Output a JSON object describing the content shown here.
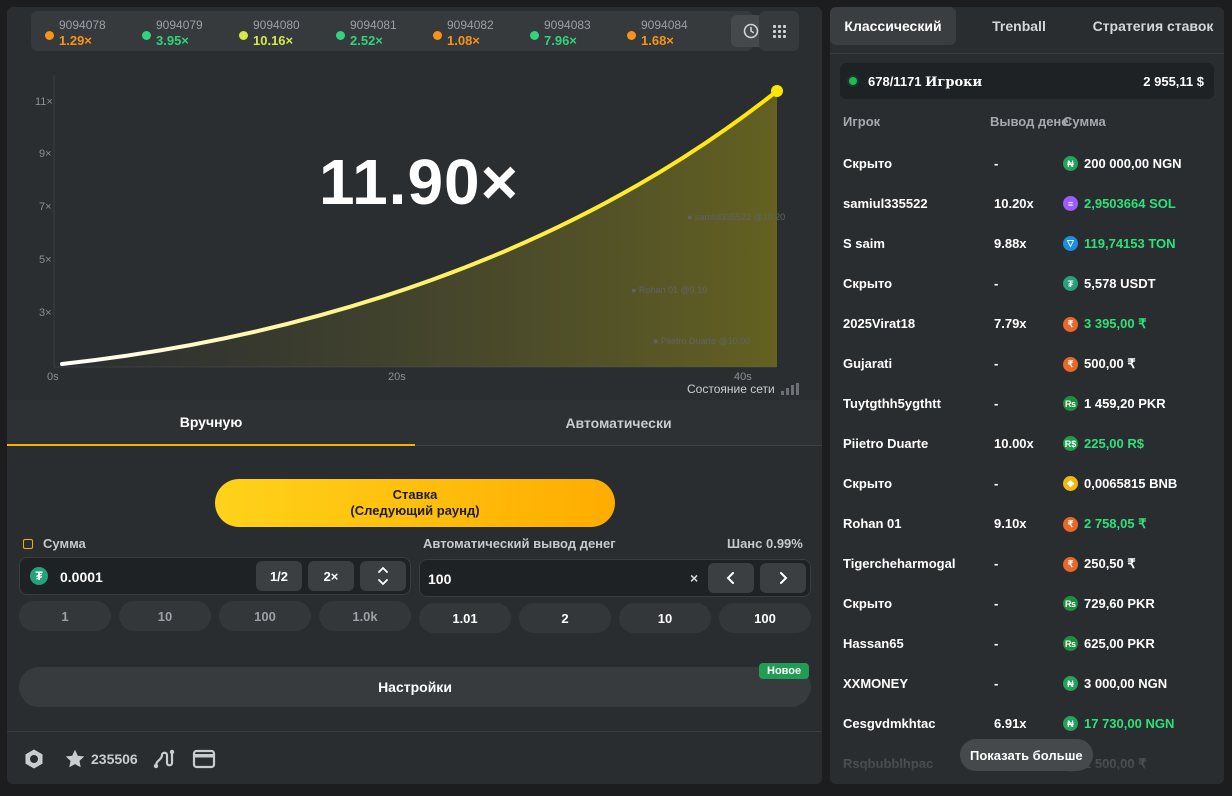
{
  "history": [
    {
      "id": "9094078",
      "value": "1.29×",
      "color": "#f7931a"
    },
    {
      "id": "9094079",
      "value": "3.95×",
      "color": "#32d37a"
    },
    {
      "id": "9094080",
      "value": "10.16×",
      "color": "#d4e94b"
    },
    {
      "id": "9094081",
      "value": "2.52×",
      "color": "#32d37a"
    },
    {
      "id": "9094082",
      "value": "1.08×",
      "color": "#f7931a"
    },
    {
      "id": "9094083",
      "value": "7.96×",
      "color": "#32d37a"
    },
    {
      "id": "9094084",
      "value": "1.68×",
      "color": "#f7931a"
    }
  ],
  "game": {
    "multiplier": "11.90×",
    "y_ticks": [
      "11×",
      "9×",
      "7×",
      "5×",
      "3×"
    ],
    "x_ticks": [
      "0s",
      "20s",
      "40s"
    ],
    "network_label": "Состояние сети",
    "ghost_labels": [
      "● samiul335522 @10.20",
      "● Rohan 01 @9.10",
      "● Piietro Duarte @10.00"
    ]
  },
  "bet": {
    "tabs": [
      "Вручную",
      "Автоматически"
    ],
    "bet_button_line1": "Ставка",
    "bet_button_line2": "(Следующий раунд)",
    "amount_label": "Сумма",
    "amount_value": "0.0001",
    "half": "1/2",
    "double": "2×",
    "presets": [
      "1",
      "10",
      "100",
      "1.0k"
    ],
    "auto_label": "Автоматический вывод денег",
    "chance": "Шанс 0.99%",
    "auto_value": "100",
    "auto_presets": [
      "1.01",
      "2",
      "10",
      "100"
    ],
    "settings": "Настройки",
    "new_badge": "Новое",
    "star_count": "235506"
  },
  "players": {
    "tabs": [
      "Классический",
      "Trenball",
      "Стратегия ставок"
    ],
    "count": "678/1171",
    "count_label": "Игроки",
    "total": "2 955,11 $",
    "col_player": "Игрок",
    "col_cashout": "Вывод денег",
    "col_amount": "Сумма",
    "show_more": "Показать больше",
    "rows": [
      {
        "name": "Скрыто",
        "mult": "-",
        "amount": "200 000,00 NGN",
        "coin": "₦",
        "coin_color": "#22a35a",
        "won": false
      },
      {
        "name": "samiul335522",
        "mult": "10.20x",
        "amount": "2,9503664 SOL",
        "coin": "≡",
        "coin_color": "#9b5cff",
        "won": true
      },
      {
        "name": "S saim",
        "mult": "9.88x",
        "amount": "119,74153 TON",
        "coin": "▽",
        "coin_color": "#1a8fe0",
        "won": true
      },
      {
        "name": "Скрыто",
        "mult": "-",
        "amount": "5,578 USDT",
        "coin": "₮",
        "coin_color": "#26a17b",
        "won": false
      },
      {
        "name": "2025Virat18",
        "mult": "7.79x",
        "amount": "3 395,00 ₹",
        "coin": "₹",
        "coin_color": "#e8682a",
        "won": true
      },
      {
        "name": "Gujarati",
        "mult": "-",
        "amount": "500,00 ₹",
        "coin": "₹",
        "coin_color": "#e8682a",
        "won": false
      },
      {
        "name": "Tuytgthh5ygthtt",
        "mult": "-",
        "amount": "1 459,20 PKR",
        "coin": "₨",
        "coin_color": "#1e8f3a",
        "won": false
      },
      {
        "name": "Piietro Duarte",
        "mult": "10.00x",
        "amount": "225,00 R$",
        "coin": "R$",
        "coin_color": "#1e9e4a",
        "won": true
      },
      {
        "name": "Скрыто",
        "mult": "-",
        "amount": "0,0065815 BNB",
        "coin": "◆",
        "coin_color": "#f0b90b",
        "won": false
      },
      {
        "name": "Rohan 01",
        "mult": "9.10x",
        "amount": "2 758,05 ₹",
        "coin": "₹",
        "coin_color": "#e8682a",
        "won": true
      },
      {
        "name": "Tigercheharmogal",
        "mult": "-",
        "amount": "250,50 ₹",
        "coin": "₹",
        "coin_color": "#e8682a",
        "won": false
      },
      {
        "name": "Скрыто",
        "mult": "-",
        "amount": "729,60 PKR",
        "coin": "₨",
        "coin_color": "#1e8f3a",
        "won": false
      },
      {
        "name": "Hassan65",
        "mult": "-",
        "amount": "625,00 PKR",
        "coin": "₨",
        "coin_color": "#1e8f3a",
        "won": false
      },
      {
        "name": "XXMONEY",
        "mult": "-",
        "amount": "3 000,00 NGN",
        "coin": "₦",
        "coin_color": "#22a35a",
        "won": false
      },
      {
        "name": "Cesgvdmkhtac",
        "mult": "6.91x",
        "amount": "17 730,00 NGN",
        "coin": "₦",
        "coin_color": "#22a35a",
        "won": true
      },
      {
        "name": "Rsqbubblhpac",
        "mult": "-",
        "amount": "2 500,00 ₹",
        "coin": "₹",
        "coin_color": "#e8682a",
        "won": false
      }
    ]
  }
}
